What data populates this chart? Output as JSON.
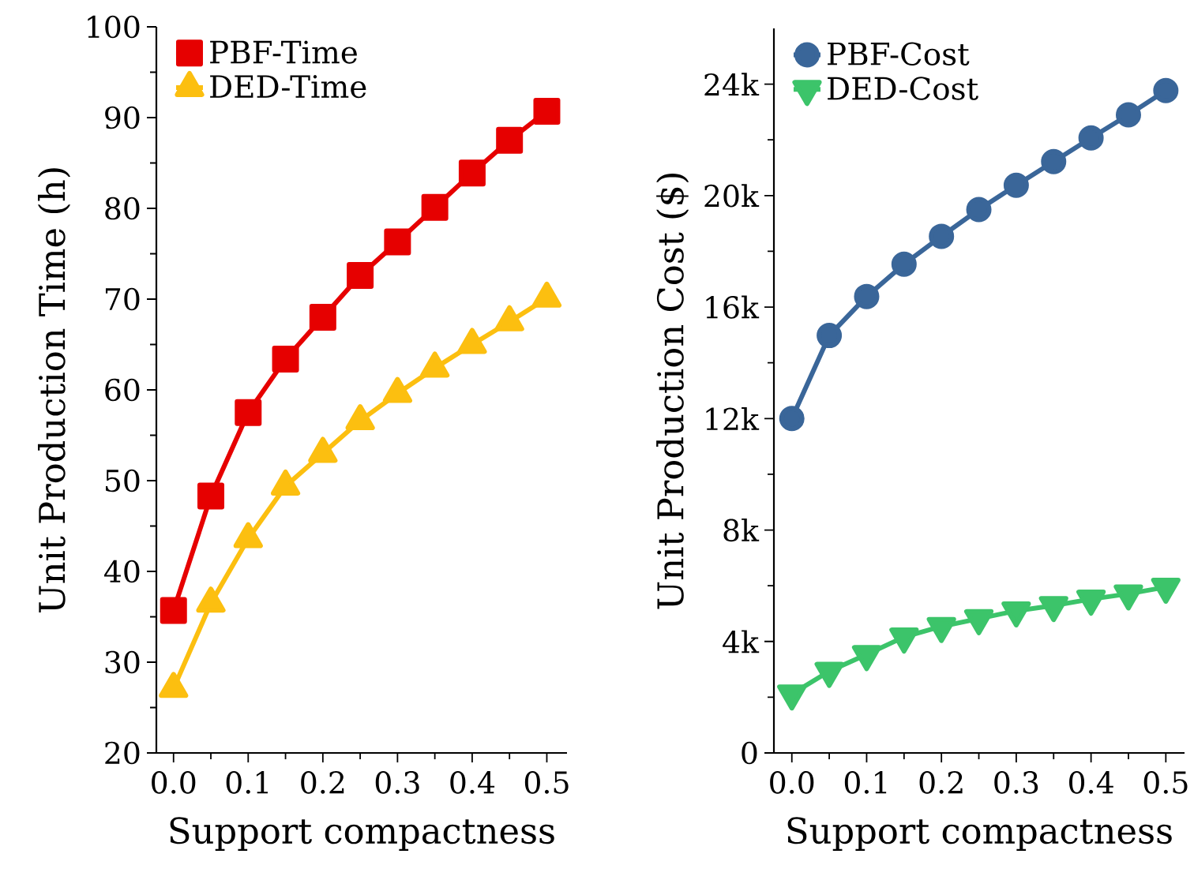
{
  "chart_data": [
    {
      "type": "line",
      "xlabel": "Support compactness",
      "ylabel": "Unit Production Time (h)",
      "legend": "top left",
      "grid": false,
      "line_style": "solid",
      "x": [
        0,
        0.05,
        0.1,
        0.15,
        0.2,
        0.25,
        0.3,
        0.35,
        0.4,
        0.45,
        0.5
      ],
      "xlim": [
        -0.023,
        0.527
      ],
      "ylim": [
        20,
        100
      ],
      "xticks": [
        {
          "value": 0,
          "label": "0.0"
        },
        {
          "value": 0.05,
          "label": null
        },
        0.1,
        {
          "value": 0.15,
          "label": null
        },
        0.2,
        {
          "value": 0.25,
          "label": null
        },
        0.3,
        {
          "value": 0.35,
          "label": null
        },
        0.4,
        {
          "value": 0.45,
          "label": null
        },
        0.5
      ],
      "yticks": [
        20,
        {
          "value": 25,
          "label": null
        },
        30,
        {
          "value": 35,
          "label": null
        },
        40,
        {
          "value": 45,
          "label": null
        },
        50,
        {
          "value": 55,
          "label": null
        },
        60,
        {
          "value": 65,
          "label": null
        },
        70,
        {
          "value": 75,
          "label": null
        },
        80,
        {
          "value": 85,
          "label": null
        },
        90,
        {
          "value": 95,
          "label": null
        },
        100
      ],
      "series": [
        {
          "name": "PBF-Time",
          "color": "#e60000",
          "marker": "square",
          "values": [
            35.7,
            48.3,
            57.5,
            63.4,
            68.0,
            72.6,
            76.3,
            80.1,
            83.9,
            87.5,
            90.7
          ]
        },
        {
          "name": "DED-Time",
          "color": "#fcbf10",
          "marker": "triangle",
          "values": [
            27.1,
            36.5,
            43.6,
            49.4,
            53.0,
            56.6,
            59.6,
            62.4,
            65.0,
            67.5,
            70.1
          ]
        }
      ]
    },
    {
      "type": "line",
      "xlabel": "Support compactness",
      "ylabel": "Unit Production Cost ($)",
      "legend": "top left",
      "grid": false,
      "line_style": "solid",
      "x": [
        0,
        0.05,
        0.1,
        0.15,
        0.2,
        0.25,
        0.3,
        0.35,
        0.4,
        0.45,
        0.5
      ],
      "xlim": [
        -0.024,
        0.525
      ],
      "ylim": [
        0,
        26000
      ],
      "xticks": [
        {
          "value": 0,
          "label": "0.0"
        },
        {
          "value": 0.05,
          "label": null
        },
        0.1,
        {
          "value": 0.15,
          "label": null
        },
        0.2,
        {
          "value": 0.25,
          "label": null
        },
        0.3,
        {
          "value": 0.35,
          "label": null
        },
        0.4,
        {
          "value": 0.45,
          "label": null
        },
        0.5
      ],
      "yticks": [
        0,
        {
          "value": 2000,
          "label": null
        },
        {
          "value": 4000,
          "label": "4k"
        },
        {
          "value": 6000,
          "label": null
        },
        {
          "value": 8000,
          "label": "8k"
        },
        {
          "value": 10000,
          "label": null
        },
        {
          "value": 12000,
          "label": "12k"
        },
        {
          "value": 14000,
          "label": null
        },
        {
          "value": 16000,
          "label": "16k"
        },
        {
          "value": 18000,
          "label": null
        },
        {
          "value": 20000,
          "label": "20k"
        },
        {
          "value": 22000,
          "label": null
        },
        {
          "value": 24000,
          "label": "24k"
        }
      ],
      "series": [
        {
          "name": "PBF-Cost",
          "color": "#3a6699",
          "marker": "circle",
          "values": [
            12000,
            14980,
            16380,
            17540,
            18540,
            19500,
            20370,
            21220,
            22070,
            22900,
            23770
          ]
        },
        {
          "name": "DED-Cost",
          "color": "#3cc46a",
          "marker": "triangle-down",
          "values": [
            2120,
            2930,
            3530,
            4160,
            4540,
            4820,
            5100,
            5290,
            5520,
            5710,
            5950
          ]
        }
      ]
    }
  ]
}
